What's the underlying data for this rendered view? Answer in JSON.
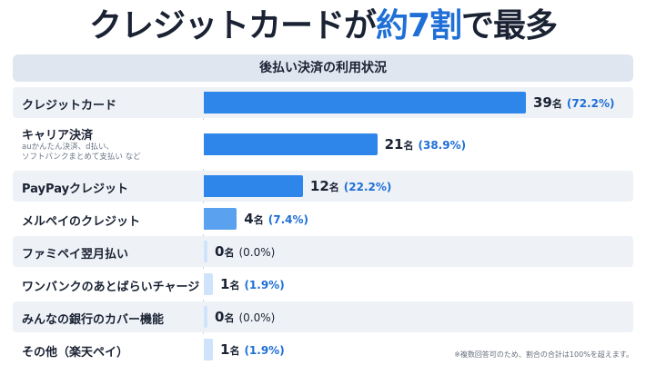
{
  "headline": {
    "part1": "クレジットカードが",
    "part2": "約7割",
    "part3": "で最多"
  },
  "subtitle": "後払い決済の利用状況",
  "footnote": "※複数回答可のため、割合の合計は100%を超えます。",
  "unit": "名",
  "colors": {
    "accent": "#1f6fd6",
    "bar_strong": "#2f86ea",
    "bar_light": "#cfe4fb",
    "row_alt": "#eef2f7"
  },
  "chart_data": {
    "type": "bar",
    "orientation": "horizontal",
    "title": "後払い決済の利用状況",
    "categories": [
      "クレジットカード",
      "キャリア決済",
      "PayPayクレジット",
      "メルペイのクレジット",
      "ファミペイ翌月払い",
      "ワンバンクのあとばらいチャージ",
      "みんなの銀行のカバー機能",
      "その他（楽天ペイ）"
    ],
    "sublabels": [
      "",
      "auかんたん決済、d払い、\nソフトバンクまとめて支払い など",
      "",
      "",
      "",
      "",
      "",
      ""
    ],
    "values": [
      39,
      21,
      12,
      4,
      0,
      1,
      0,
      1
    ],
    "value_labels": [
      "39",
      "21",
      "12",
      "4",
      "0",
      "1",
      "0",
      "1"
    ],
    "percent_labels": [
      "(72.2%)",
      "(38.9%)",
      "(22.2%)",
      "(7.4%)",
      "(0.0%)",
      "(1.9%)",
      "(0.0%)",
      "(1.9%)"
    ],
    "xlim": [
      0,
      40
    ]
  }
}
